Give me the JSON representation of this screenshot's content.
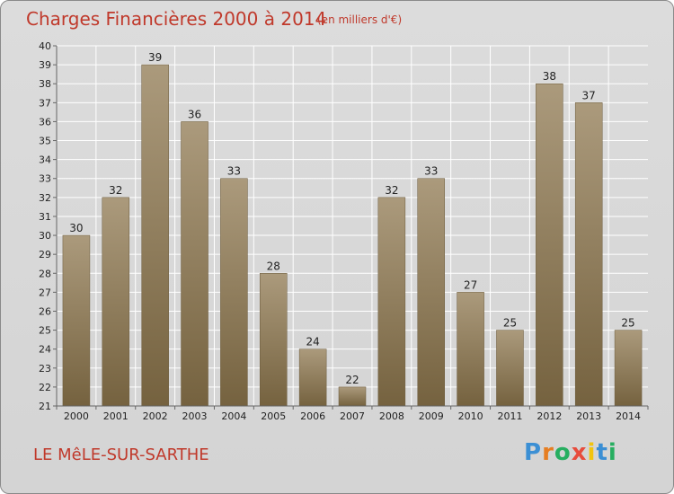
{
  "header": {
    "title": "Charges Financières 2000 à 2014",
    "unit": "(en milliers d'€)"
  },
  "footer": {
    "commune": "LE MêLE-SUR-SARTHE",
    "brand_letters": [
      "P",
      "r",
      "o",
      "x",
      "i",
      "t",
      "i"
    ],
    "brand_colors": [
      "#3b8fd4",
      "#e67e22",
      "#27ae60",
      "#e74c3c",
      "#f1c40f",
      "#3b8fd4",
      "#27ae60"
    ]
  },
  "colors": {
    "bar_top": "#ab9a7c",
    "bar_bottom": "#75623f",
    "grid": "#ffffff",
    "axis": "#666666"
  },
  "chart_data": {
    "type": "bar",
    "title": "Charges Financières 2000 à 2014",
    "unit": "(en milliers d'€)",
    "categories": [
      "2000",
      "2001",
      "2002",
      "2003",
      "2004",
      "2005",
      "2006",
      "2007",
      "2008",
      "2009",
      "2010",
      "2011",
      "2012",
      "2013",
      "2014"
    ],
    "values": [
      30,
      32,
      39,
      36,
      33,
      28,
      24,
      22,
      32,
      33,
      27,
      25,
      38,
      37,
      25
    ],
    "ylim": [
      21,
      40
    ],
    "yticks": [
      21,
      22,
      23,
      24,
      25,
      26,
      27,
      28,
      29,
      30,
      31,
      32,
      33,
      34,
      35,
      36,
      37,
      38,
      39,
      40
    ],
    "grid": true,
    "legend": "none"
  }
}
